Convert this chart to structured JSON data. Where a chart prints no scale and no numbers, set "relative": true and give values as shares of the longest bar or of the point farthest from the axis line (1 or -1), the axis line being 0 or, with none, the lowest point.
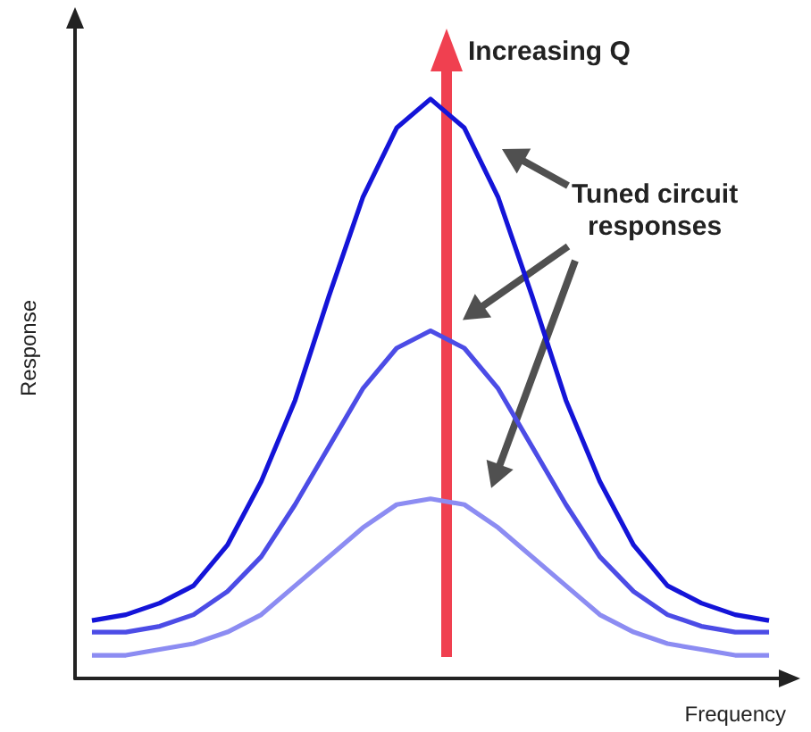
{
  "chart_data": {
    "type": "line",
    "relative": true,
    "xlabel": "Frequency",
    "ylabel": "Response",
    "marker": "none",
    "line_style": "solid",
    "grid": false,
    "annotations": [
      "Increasing Q",
      "Tuned circuit\nresponses"
    ],
    "categories": [
      null,
      null,
      null,
      null,
      null,
      null,
      null,
      null,
      null,
      null,
      null,
      null,
      null,
      null,
      null,
      null,
      null,
      null,
      null,
      null,
      null
    ],
    "series": [
      {
        "color": "#1414d8",
        "values": [
          0.1,
          0.11,
          0.13,
          0.16,
          0.23,
          0.34,
          0.48,
          0.66,
          0.83,
          0.95,
          1,
          0.95,
          0.83,
          0.66,
          0.48,
          0.34,
          0.23,
          0.16,
          0.13,
          0.11,
          0.1
        ]
      },
      {
        "color": "#4c4ce6",
        "values": [
          0.08,
          0.08,
          0.09,
          0.11,
          0.15,
          0.21,
          0.3,
          0.4,
          0.5,
          0.57,
          0.6,
          0.57,
          0.5,
          0.4,
          0.3,
          0.21,
          0.15,
          0.11,
          0.09,
          0.08,
          0.08
        ]
      },
      {
        "color": "#8c8cf2",
        "values": [
          0.04,
          0.04,
          0.05,
          0.06,
          0.08,
          0.11,
          0.16,
          0.21,
          0.26,
          0.3,
          0.31,
          0.3,
          0.26,
          0.21,
          0.16,
          0.11,
          0.08,
          0.06,
          0.05,
          0.04,
          0.04
        ]
      }
    ]
  }
}
